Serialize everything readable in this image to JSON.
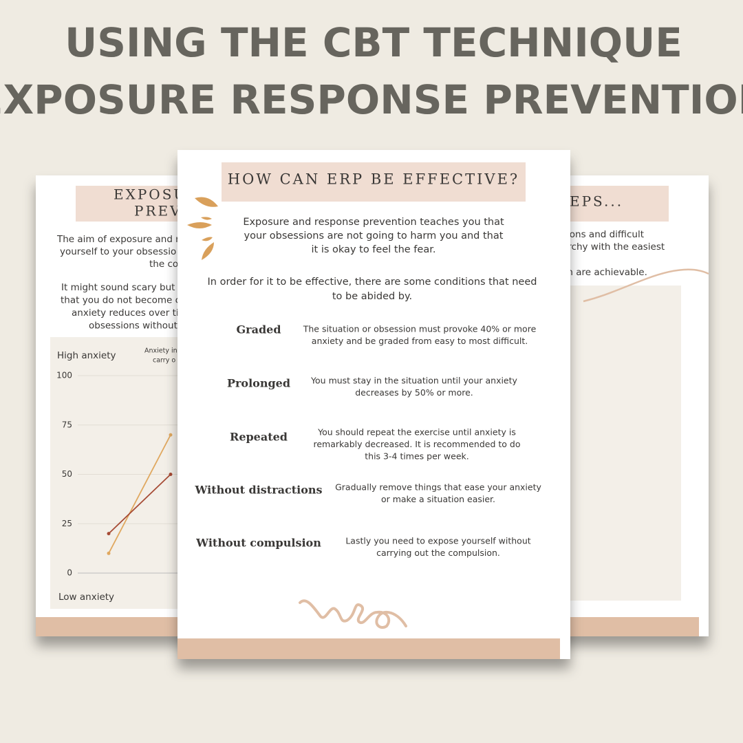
{
  "title_lines": [
    "USING THE CBT TECHNIQUE",
    "EXPOSURE RESPONSE PREVENTION"
  ],
  "left_page": {
    "heading_lines": [
      "EXPOSU",
      "PREV"
    ],
    "paragraph_1": [
      "The aim of exposure and r",
      "yourself to your obsessio",
      "the co"
    ],
    "paragraph_2": [
      "It might sound scary but",
      "that you do not become c",
      "anxiety reduces over ti",
      "obsessions without"
    ],
    "chart": {
      "type": "line",
      "y_top_label": "High anxiety",
      "y_bottom_label": "Low anxiety",
      "note_lines": [
        "Anxiety in",
        "carry o"
      ],
      "ylim": [
        0,
        100
      ],
      "yticks": [
        0,
        25,
        50,
        75,
        100
      ],
      "series": [
        {
          "color": "#e0a85f",
          "values": [
            10,
            70
          ]
        },
        {
          "color": "#a64b35",
          "values": [
            20,
            50
          ]
        }
      ]
    }
  },
  "center_page": {
    "heading": "HOW CAN ERP BE EFFECTIVE?",
    "intro": [
      "Exposure and response prevention teaches you that",
      "your obsessions are not going to harm you and that",
      "it is okay to feel the fear."
    ],
    "conditions_intro": [
      "In order for it to be effective, there are some conditions that need",
      "to be abided by."
    ],
    "conditions": [
      {
        "term": "Graded",
        "description": [
          "The situation or obsession must provoke 40% or more",
          "anxiety and be graded from easy to most difficult."
        ]
      },
      {
        "term": "Prolonged",
        "description": [
          "You must stay in the situation until your anxiety",
          "decreases by 50% or more."
        ]
      },
      {
        "term": "Repeated",
        "description": [
          "You should repeat the exercise until anxiety is",
          "remarkably decreased. It is recommended to do",
          "this 3-4 times per week."
        ]
      },
      {
        "term": "Without distractions",
        "description": [
          "Gradually remove things that ease your anxiety",
          "or make a situation easier."
        ]
      },
      {
        "term": "Without compulsion",
        "description": [
          "Lastly you need to expose yourself without",
          "carrying out the compulsion."
        ]
      }
    ]
  },
  "right_page": {
    "heading": "EPS...",
    "lines": [
      "sions and difficult",
      "archy with the easiest",
      "ch are achievable."
    ]
  }
}
